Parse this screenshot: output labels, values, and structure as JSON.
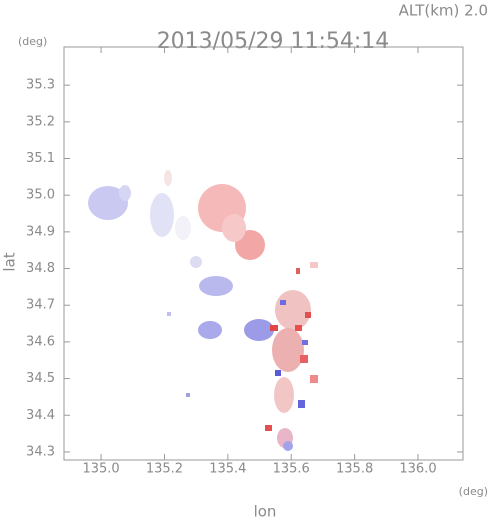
{
  "chart_data": {
    "type": "map",
    "title": "2013/05/29 11:54:14",
    "subtitle": "ALT(km) 2.0",
    "x_label": "lon",
    "y_label": "lat",
    "x_unit": "(deg)",
    "y_unit": "(deg)",
    "xlim": [
      134.883,
      136.142
    ],
    "ylim": [
      34.278,
      35.404
    ],
    "xticks": [
      {
        "value": 135.0,
        "label": "135.0"
      },
      {
        "value": 135.2,
        "label": "135.2"
      },
      {
        "value": 135.4,
        "label": "135.4"
      },
      {
        "value": 135.6,
        "label": "135.6"
      },
      {
        "value": 135.8,
        "label": "135.8"
      },
      {
        "value": 136.0,
        "label": "136.0"
      }
    ],
    "yticks": [
      34.3,
      34.4,
      34.5,
      34.6,
      34.7,
      34.8,
      34.9,
      {
        "value": 35.0,
        "label": "35.0"
      },
      35.1,
      35.2,
      35.3
    ]
  }
}
